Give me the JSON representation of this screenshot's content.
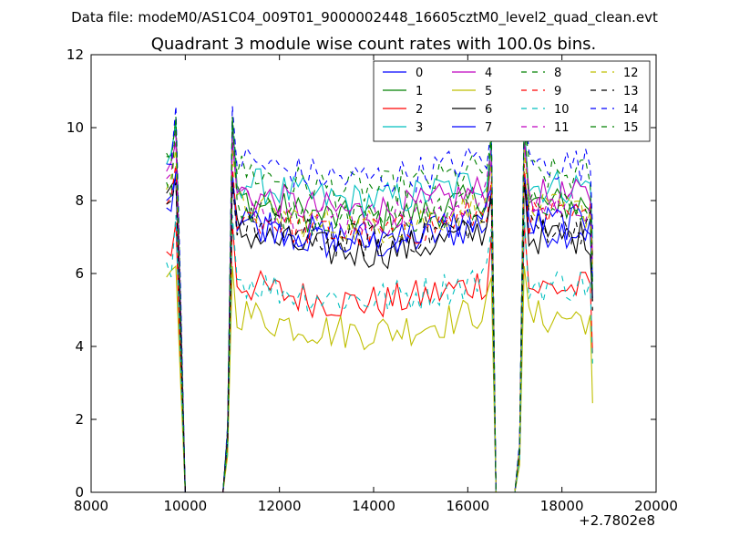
{
  "chart_data": {
    "type": "line",
    "suptitle": "Data file: modeM0/AS1C04_009T01_9000002448_16605cztM0_level2_quad_clean.evt",
    "title": "Quadrant 3 module wise count rates with 100.0s bins.",
    "xlabel": "",
    "ylabel": "",
    "x_offset_label": "+2.7802e8",
    "xlim": [
      8000,
      20000
    ],
    "ylim": [
      0,
      12
    ],
    "xticks": [
      8000,
      10000,
      12000,
      14000,
      16000,
      18000,
      20000
    ],
    "xtick_labels": [
      "8000",
      "10000",
      "12000",
      "14000",
      "16000",
      "18000",
      "20000"
    ],
    "yticks": [
      0,
      2,
      4,
      6,
      8,
      10,
      12
    ],
    "ytick_labels": [
      "0",
      "2",
      "4",
      "6",
      "8",
      "10",
      "12"
    ],
    "legend_location": "top-right",
    "bin_seconds": 100,
    "segments": [
      {
        "start": 9600,
        "end": 10000
      },
      {
        "start": 10000,
        "end": 10800,
        "gap": true
      },
      {
        "start": 10900,
        "end": 16600
      },
      {
        "start": 16600,
        "end": 17100,
        "gap": true
      },
      {
        "start": 17100,
        "end": 18650
      }
    ],
    "series": [
      {
        "name": "0",
        "color": "#0000ff",
        "dash": "solid",
        "level": 7.4,
        "start_level": 8.0,
        "peak": 8.7
      },
      {
        "name": "1",
        "color": "#008000",
        "dash": "solid",
        "level": 8.1,
        "start_level": 9.2,
        "peak": 10.2
      },
      {
        "name": "2",
        "color": "#ff0000",
        "dash": "solid",
        "level": 5.8,
        "start_level": 6.6,
        "peak": 7.4
      },
      {
        "name": "3",
        "color": "#00bfbf",
        "dash": "solid",
        "level": 8.6,
        "start_level": 9.0,
        "peak": 10.1
      },
      {
        "name": "4",
        "color": "#bf00bf",
        "dash": "solid",
        "level": 8.3,
        "start_level": 8.8,
        "peak": 9.6
      },
      {
        "name": "5",
        "color": "#bfbf00",
        "dash": "solid",
        "level": 5.0,
        "start_level": 5.9,
        "peak": 6.2
      },
      {
        "name": "6",
        "color": "#000000",
        "dash": "solid",
        "level": 7.2,
        "start_level": 8.2,
        "peak": 8.6
      },
      {
        "name": "7",
        "color": "#0000ff",
        "dash": "solid",
        "level": 7.6,
        "start_level": 7.8,
        "peak": 8.8
      },
      {
        "name": "8",
        "color": "#008000",
        "dash": "dashed",
        "level": 8.9,
        "start_level": 9.3,
        "peak": 10.3
      },
      {
        "name": "9",
        "color": "#ff0000",
        "dash": "dashed",
        "level": 7.7,
        "start_level": 7.9,
        "peak": 9.0
      },
      {
        "name": "10",
        "color": "#00bfbf",
        "dash": "dashed",
        "level": 5.9,
        "start_level": 6.3,
        "peak": 7.6
      },
      {
        "name": "11",
        "color": "#bf00bf",
        "dash": "dashed",
        "level": 8.1,
        "start_level": 8.6,
        "peak": 9.9
      },
      {
        "name": "12",
        "color": "#bfbf00",
        "dash": "dashed",
        "level": 7.9,
        "start_level": 8.3,
        "peak": 9.4
      },
      {
        "name": "13",
        "color": "#000000",
        "dash": "dashed",
        "level": 7.5,
        "start_level": 7.9,
        "peak": 8.5
      },
      {
        "name": "14",
        "color": "#0000ff",
        "dash": "dashed",
        "level": 9.2,
        "start_level": 9.0,
        "peak": 10.6
      },
      {
        "name": "15",
        "color": "#008000",
        "dash": "dashed",
        "level": 8.0,
        "start_level": 8.5,
        "peak": 10.3
      }
    ]
  }
}
